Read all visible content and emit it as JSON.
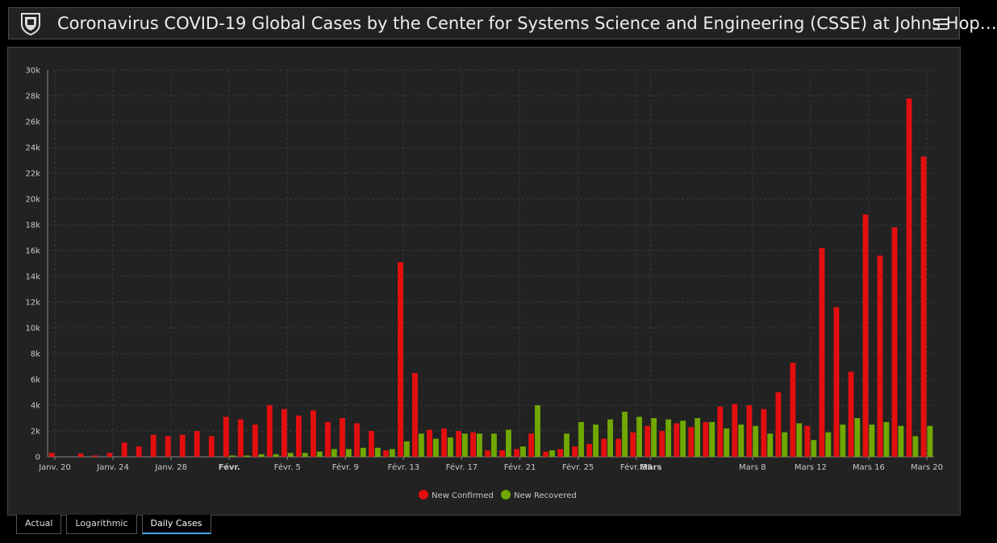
{
  "header": {
    "title": "Coronavirus COVID-19 Global Cases by the Center for Systems Science and Engineering (CSSE) at Johns Hop…",
    "logo_icon": "university-shield-icon",
    "menu_icon": "hamburger-menu-icon"
  },
  "tabs": [
    {
      "label": "Actual",
      "active": false
    },
    {
      "label": "Logarithmic",
      "active": false
    },
    {
      "label": "Daily Cases",
      "active": true
    }
  ],
  "chart_data": {
    "type": "bar",
    "xlabel": "",
    "ylabel": "",
    "ylim": [
      0,
      30000
    ],
    "yticks": [
      0,
      2000,
      4000,
      6000,
      8000,
      10000,
      12000,
      14000,
      16000,
      18000,
      20000,
      22000,
      24000,
      26000,
      28000,
      30000
    ],
    "ytick_labels": [
      "0",
      "2k",
      "4k",
      "6k",
      "8k",
      "10k",
      "12k",
      "14k",
      "16k",
      "18k",
      "20k",
      "22k",
      "24k",
      "26k",
      "28k",
      "30k"
    ],
    "grid": true,
    "legend": "bottom-center",
    "x_tick_labels": [
      {
        "label": "Janv. 20",
        "day": 0,
        "bold": false
      },
      {
        "label": "Janv. 24",
        "day": 4,
        "bold": false
      },
      {
        "label": "Janv. 28",
        "day": 8,
        "bold": false
      },
      {
        "label": "Févr.",
        "day": 12,
        "bold": true
      },
      {
        "label": "Févr. 5",
        "day": 16,
        "bold": false
      },
      {
        "label": "Févr. 9",
        "day": 20,
        "bold": false
      },
      {
        "label": "Févr. 13",
        "day": 24,
        "bold": false
      },
      {
        "label": "Févr. 17",
        "day": 28,
        "bold": false
      },
      {
        "label": "Févr. 21",
        "day": 32,
        "bold": false
      },
      {
        "label": "Févr. 25",
        "day": 36,
        "bold": false
      },
      {
        "label": "Févr. 29",
        "day": 40,
        "bold": false
      },
      {
        "label": "Mars",
        "day": 41,
        "bold": true
      },
      {
        "label": "Mars 8",
        "day": 48,
        "bold": false
      },
      {
        "label": "Mars 12",
        "day": 52,
        "bold": false
      },
      {
        "label": "Mars 16",
        "day": 56,
        "bold": false
      },
      {
        "label": "Mars 20",
        "day": 60,
        "bold": false
      }
    ],
    "series": [
      {
        "name": "New Confirmed",
        "color": "#e30f0f",
        "values": [
          300,
          0,
          250,
          100,
          300,
          1100,
          800,
          1700,
          1600,
          1700,
          2000,
          1600,
          3100,
          2900,
          2500,
          4000,
          3700,
          3200,
          3600,
          2700,
          3000,
          2600,
          2000,
          500,
          15100,
          6500,
          2100,
          2200,
          2000,
          1900,
          500,
          500,
          600,
          1800,
          400,
          600,
          800,
          1000,
          1400,
          1400,
          1900,
          2400,
          2000,
          2600,
          2300,
          2700,
          3900,
          4100,
          4000,
          3700,
          5000,
          7300,
          2400,
          16200,
          11600,
          6600,
          18800,
          15600,
          17800,
          27800,
          23300
        ]
      },
      {
        "name": "New Recovered",
        "color": "#70a800",
        "values": [
          0,
          0,
          0,
          0,
          0,
          0,
          0,
          0,
          0,
          0,
          0,
          0,
          100,
          100,
          200,
          200,
          300,
          300,
          400,
          600,
          600,
          700,
          700,
          600,
          1200,
          1800,
          1400,
          1500,
          1800,
          1800,
          1800,
          2100,
          800,
          4000,
          500,
          1800,
          2700,
          2500,
          2900,
          3500,
          3100,
          3000,
          2900,
          2800,
          3000,
          2700,
          2200,
          2500,
          2400,
          1800,
          1900,
          2600,
          1300,
          1900,
          2500,
          3000,
          2500,
          2700,
          2400,
          1600,
          2400
        ]
      }
    ]
  }
}
